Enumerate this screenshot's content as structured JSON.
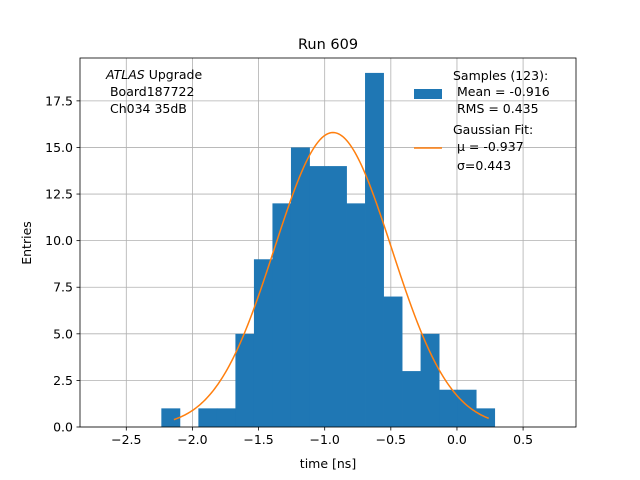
{
  "chart_data": {
    "type": "bar",
    "title": "Run 609",
    "xlabel": "time [ns]",
    "ylabel": "Entries",
    "xlim": [
      -2.85,
      0.9
    ],
    "ylim": [
      0,
      19.8
    ],
    "grid": true,
    "xticks": [
      -2.5,
      -2.0,
      -1.5,
      -1.0,
      -0.5,
      0.0,
      0.5
    ],
    "xtick_labels": [
      "−2.5",
      "−2.0",
      "−1.5",
      "−1.0",
      "−0.5",
      "0.0",
      "0.5"
    ],
    "yticks": [
      0,
      2.5,
      5,
      7.5,
      10,
      12.5,
      15,
      17.5
    ],
    "ytick_labels": [
      "0.0",
      "2.5",
      "5.0",
      "7.5",
      "10.0",
      "12.5",
      "15.0",
      "17.5"
    ],
    "histogram": {
      "bin_edges": [
        -2.235,
        -2.095,
        -1.955,
        -1.815,
        -1.675,
        -1.535,
        -1.395,
        -1.255,
        -1.115,
        -0.975,
        -0.835,
        -0.695,
        -0.555,
        -0.415,
        -0.275,
        -0.135,
        0.005,
        0.145,
        0.285
      ],
      "counts": [
        1,
        0,
        1,
        1,
        5,
        9,
        12,
        15,
        14,
        14,
        12,
        19,
        7,
        3,
        5,
        2,
        2,
        1
      ],
      "color": "#1f77b4"
    },
    "fit": {
      "type": "gaussian",
      "mu": -0.937,
      "sigma": 0.443,
      "amplitude": 15.8,
      "x_range": [
        -2.14,
        0.24
      ],
      "color": "#ff7f0e"
    },
    "legend": {
      "position": "top-right",
      "entries": [
        {
          "kind": "patch",
          "color": "#1f77b4",
          "lines": [
            "Samples (123):",
            " Mean = -0.916",
            " RMS = 0.435"
          ]
        },
        {
          "kind": "line",
          "color": "#ff7f0e",
          "lines": [
            "Gaussian Fit:",
            " μ = -0.937",
            " σ=0.443"
          ]
        }
      ]
    },
    "annotation": {
      "italic": "ATLAS",
      "rest": " Upgrade",
      "lines": [
        " Board187722",
        " Ch034 35dB"
      ]
    }
  }
}
